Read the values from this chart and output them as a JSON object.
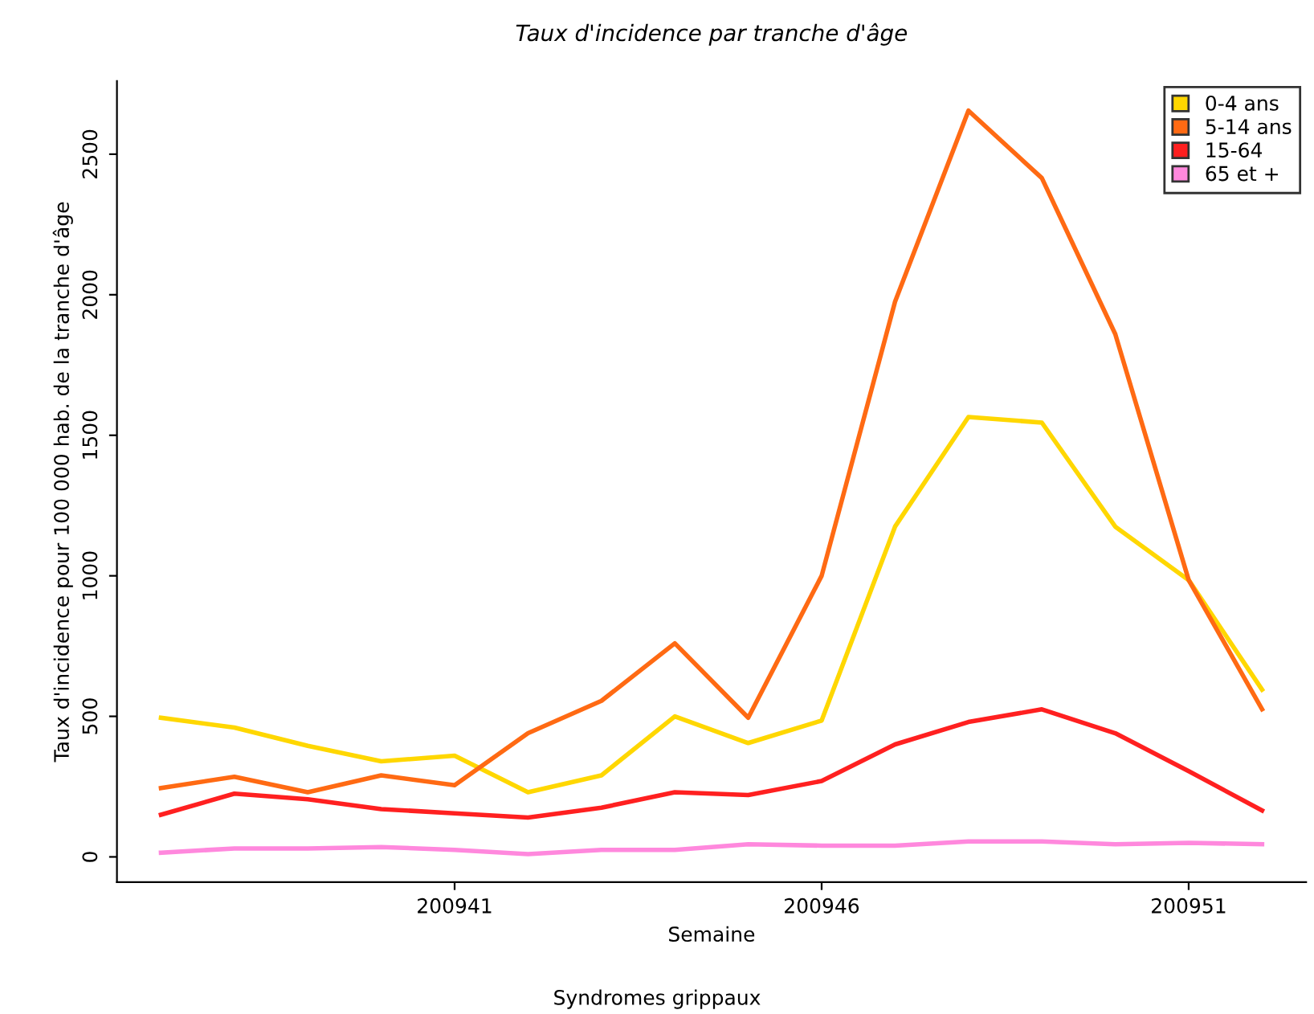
{
  "chart_data": {
    "type": "line",
    "title": "Taux d'incidence par tranche d'âge",
    "xlabel": "Semaine",
    "ylabel": "Taux d'incidence pour 100 000 hab. de la tranche d'âge",
    "annotations": [
      "Syndromes grippaux"
    ],
    "x": [
      200937,
      200938,
      200939,
      200940,
      200941,
      200942,
      200943,
      200944,
      200945,
      200946,
      200947,
      200948,
      200949,
      200950,
      200951,
      200952
    ],
    "series": [
      {
        "name": "0-4 ans",
        "color": "#ffd700",
        "values": [
          495,
          460,
          395,
          340,
          360,
          230,
          290,
          500,
          405,
          485,
          1175,
          1565,
          1545,
          1175,
          985,
          595
        ]
      },
      {
        "name": "5-14 ans",
        "color": "#ff6a13",
        "values": [
          245,
          285,
          230,
          290,
          255,
          440,
          555,
          760,
          495,
          1000,
          1975,
          2655,
          2415,
          1860,
          985,
          525
        ]
      },
      {
        "name": "15-64",
        "color": "#ff2020",
        "values": [
          150,
          225,
          205,
          170,
          155,
          140,
          175,
          230,
          220,
          270,
          400,
          480,
          525,
          440,
          305,
          165
        ]
      },
      {
        "name": "65 et +",
        "color": "#ff88dd",
        "values": [
          15,
          30,
          30,
          35,
          25,
          10,
          25,
          25,
          45,
          40,
          40,
          55,
          55,
          45,
          50,
          45
        ]
      }
    ],
    "xlim": [
      200936.4,
      200952.6
    ],
    "ylim": [
      -90,
      2760
    ],
    "xticks": [
      200941,
      200946,
      200951
    ],
    "yticks": [
      0,
      500,
      1000,
      1500,
      2000,
      2500
    ],
    "grid": false,
    "legend": "top right",
    "marker": "none",
    "line_style": "solid"
  }
}
